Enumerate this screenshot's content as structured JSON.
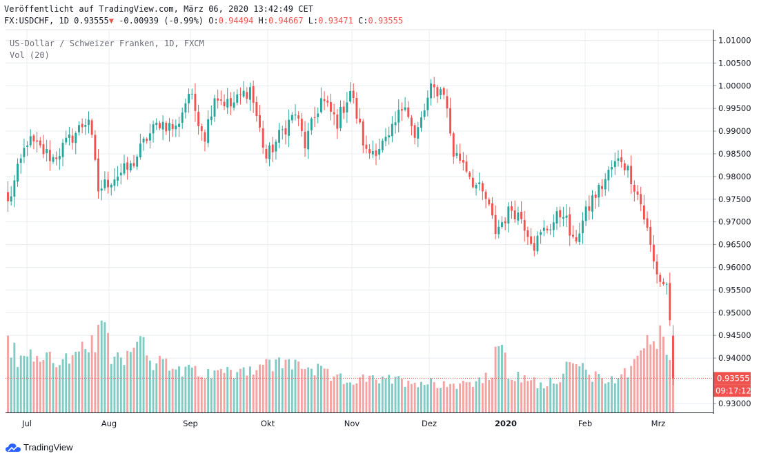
{
  "header": {
    "published": "Veröffentlicht auf TradingView.com, März 06, 2020 13:42:49 CET",
    "symbol_line": "FX:USDCHF, 1D",
    "last": "0.93555",
    "change": "-0.00939 (-0.99%)",
    "o_label": "O:",
    "o_value": "0.94494",
    "h_label": "H:",
    "h_value": "0.94667",
    "l_label": "L:",
    "l_value": "0.93471",
    "c_label": "C:",
    "c_value": "0.93555"
  },
  "legend": {
    "series": "US-Dollar / Schweizer Franken, 1D, FXCM",
    "volume": "Vol (20)"
  },
  "colors": {
    "up": "#26a69a",
    "down": "#ef5350",
    "up_vol": "#80cbc4",
    "down_vol": "#f4a3a3",
    "grid": "#e8ecf1"
  },
  "brand": {
    "name": "TradingView"
  },
  "chart_data": {
    "type": "candlestick",
    "price_axis": {
      "ylim": [
        0.9277,
        1.0125
      ],
      "ticks": [
        "1.01000",
        "1.00500",
        "1.00000",
        "0.99500",
        "0.99000",
        "0.98500",
        "0.98000",
        "0.97500",
        "0.97000",
        "0.96500",
        "0.96000",
        "0.95500",
        "0.95000",
        "0.94500",
        "0.94000",
        "0.93000"
      ],
      "last_price_label": "0.93555",
      "countdown_label": "09:17:12"
    },
    "time_axis": {
      "labels": [
        {
          "text": "Jul",
          "bold": false
        },
        {
          "text": "Aug",
          "bold": false
        },
        {
          "text": "Sep",
          "bold": false
        },
        {
          "text": "Okt",
          "bold": false
        },
        {
          "text": "Nov",
          "bold": false
        },
        {
          "text": "Dez",
          "bold": false
        },
        {
          "text": "2020",
          "bold": true
        },
        {
          "text": "Feb",
          "bold": false
        },
        {
          "text": "Mrz",
          "bold": false
        }
      ]
    },
    "anchors": [
      [
        0,
        0.974
      ],
      [
        6,
        0.988
      ],
      [
        14,
        0.984
      ],
      [
        19,
        0.988
      ],
      [
        25,
        0.993
      ],
      [
        28,
        0.977
      ],
      [
        33,
        0.98
      ],
      [
        38,
        0.982
      ],
      [
        43,
        0.9885
      ],
      [
        47,
        0.992
      ],
      [
        52,
        0.9905
      ],
      [
        56,
        0.9985
      ],
      [
        61,
        0.989
      ],
      [
        64,
        0.998
      ],
      [
        69,
        0.9955
      ],
      [
        75,
        0.9995
      ],
      [
        80,
        0.984
      ],
      [
        85,
        0.99
      ],
      [
        89,
        0.994
      ],
      [
        92,
        0.987
      ],
      [
        97,
        0.997
      ],
      [
        102,
        0.992
      ],
      [
        106,
        0.999
      ],
      [
        111,
        0.985
      ],
      [
        118,
        0.988
      ],
      [
        123,
        0.997
      ],
      [
        126,
        0.988
      ],
      [
        131,
        0.999
      ],
      [
        135,
        0.999
      ],
      [
        138,
        0.985
      ],
      [
        141,
        0.9835
      ],
      [
        144,
        0.979
      ],
      [
        148,
        0.975
      ],
      [
        151,
        0.968
      ],
      [
        153,
        0.97
      ],
      [
        156,
        0.973
      ],
      [
        159,
        0.971
      ],
      [
        163,
        0.965
      ],
      [
        166,
        0.968
      ],
      [
        169,
        0.97
      ],
      [
        172,
        0.9725
      ],
      [
        175,
        0.965
      ],
      [
        178,
        0.97
      ],
      [
        181,
        0.975
      ],
      [
        184,
        0.978
      ],
      [
        187,
        0.982
      ],
      [
        190,
        0.984
      ],
      [
        193,
        0.98
      ],
      [
        196,
        0.974
      ],
      [
        198,
        0.968
      ],
      [
        200,
        0.961
      ],
      [
        202,
        0.957
      ],
      [
        204,
        0.956
      ],
      [
        205,
        0.949
      ],
      [
        206,
        0.9356
      ]
    ],
    "volume_peaks": [
      [
        0,
        0.78
      ],
      [
        3,
        0.55
      ],
      [
        10,
        0.6
      ],
      [
        20,
        0.55
      ],
      [
        27,
        0.75
      ],
      [
        30,
        0.86
      ],
      [
        32,
        0.6
      ],
      [
        38,
        0.62
      ],
      [
        40,
        0.88
      ],
      [
        45,
        0.55
      ],
      [
        52,
        0.45
      ],
      [
        62,
        0.4
      ],
      [
        80,
        0.5
      ],
      [
        90,
        0.52
      ],
      [
        102,
        0.35
      ],
      [
        120,
        0.34
      ],
      [
        140,
        0.3
      ],
      [
        150,
        0.38
      ],
      [
        152,
        0.81
      ],
      [
        155,
        0.4
      ],
      [
        165,
        0.3
      ],
      [
        170,
        0.36
      ],
      [
        175,
        0.52
      ],
      [
        183,
        0.35
      ],
      [
        190,
        0.38
      ],
      [
        195,
        0.57
      ],
      [
        198,
        0.86
      ],
      [
        200,
        0.68
      ],
      [
        202,
        0.8
      ],
      [
        204,
        0.58
      ],
      [
        206,
        0.72
      ]
    ]
  }
}
